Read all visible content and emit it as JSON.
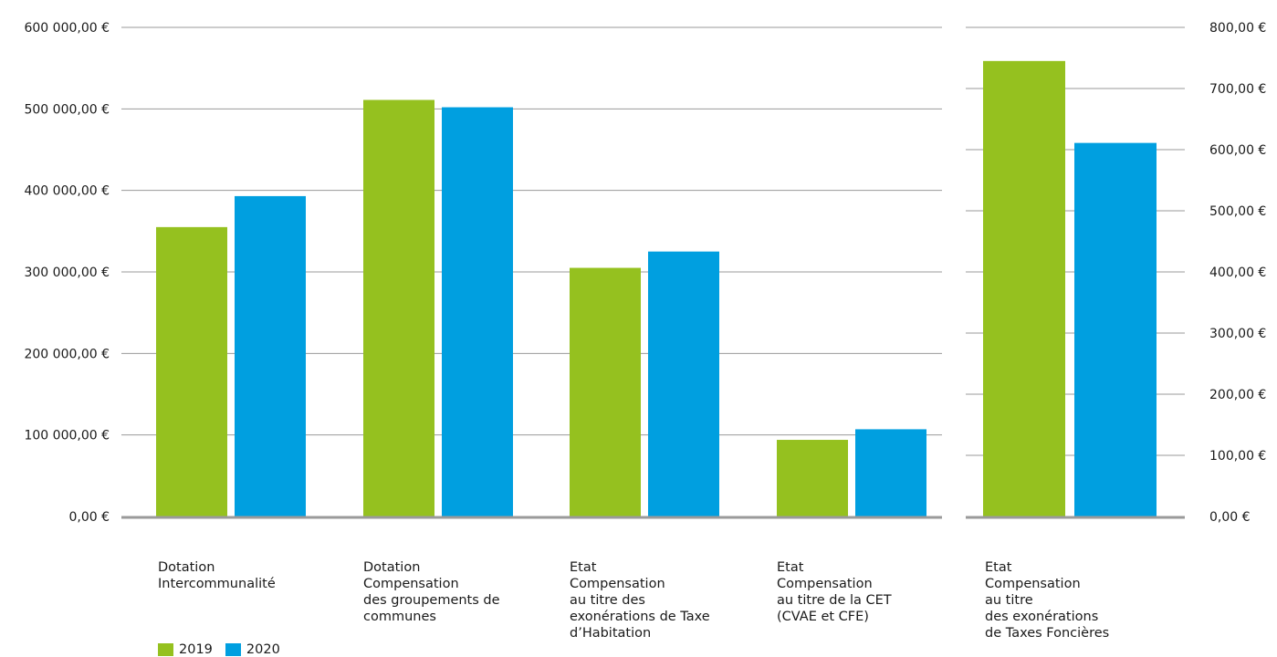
{
  "chart_data": [
    {
      "type": "bar",
      "categories": [
        "Dotation\nIntercommunalité",
        "Dotation\nCompensation\ndes groupements de\ncommunes",
        "Etat\nCompensation\nau titre des\nexonérations de Taxe\nd’Habitation",
        "Etat\nCompensation\nau titre de la CET\n(CVAE et CFE)"
      ],
      "series": [
        {
          "name": "2019",
          "values": [
            355000,
            511000,
            305000,
            94000
          ]
        },
        {
          "name": "2020",
          "values": [
            393000,
            502000,
            325000,
            107000
          ]
        }
      ],
      "ylim": [
        0,
        600000
      ],
      "yticks": [
        "0,00 €",
        "100 000,00 €",
        "200 000,00 €",
        "300 000,00 €",
        "400 000,00 €",
        "500 000,00 €",
        "600 000,00 €"
      ],
      "grid": true,
      "legend": "bottom-left"
    },
    {
      "type": "bar",
      "categories": [
        "Etat\nCompensation\nau titre\ndes  exonérations\nde Taxes Foncières"
      ],
      "series": [
        {
          "name": "2019",
          "values": [
            745
          ]
        },
        {
          "name": "2020",
          "values": [
            611
          ]
        }
      ],
      "ylim": [
        0,
        800
      ],
      "yticks": [
        "0,00 €",
        "100,00 €",
        "200,00 €",
        "300,00 €",
        "400,00 €",
        "500,00 €",
        "600,00 €",
        "700,00 €",
        "800,00 €"
      ],
      "grid": true
    }
  ],
  "colors": {
    "series_2019": "#95c11f",
    "series_2020": "#009fe0",
    "grid": "#9a9a9a",
    "axis": "#9a9a9a"
  }
}
